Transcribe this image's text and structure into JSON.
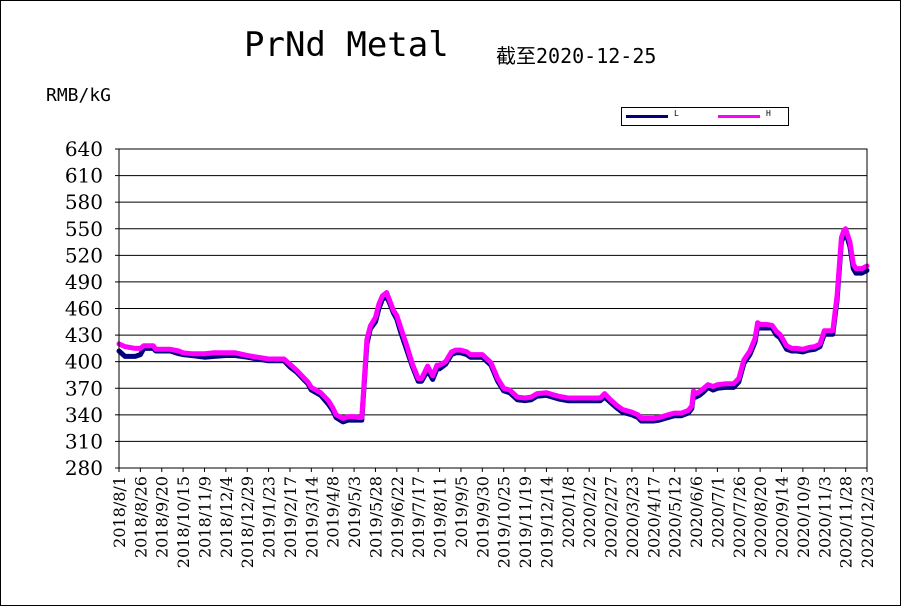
{
  "chart_data": {
    "type": "line",
    "title": "PrNd Metal",
    "subtitle": "截至2020-12-25",
    "ylabel": "RMB/kG",
    "ylim": [
      280,
      640
    ],
    "yticks": [
      280,
      310,
      340,
      370,
      400,
      430,
      460,
      490,
      520,
      550,
      580,
      610,
      640
    ],
    "grid": true,
    "legend_position": "top-right",
    "x_tick_labels": [
      "2018/8/1",
      "2018/8/26",
      "2018/9/20",
      "2018/10/15",
      "2018/11/9",
      "2018/12/4",
      "2018/12/29",
      "2019/1/23",
      "2019/2/17",
      "2019/3/14",
      "2019/4/8",
      "2019/5/3",
      "2019/5/28",
      "2019/6/22",
      "2019/7/17",
      "2019/8/11",
      "2019/9/5",
      "2019/9/30",
      "2019/10/25",
      "2019/11/19",
      "2019/12/14",
      "2020/1/8",
      "2020/2/2",
      "2020/2/27",
      "2020/3/23",
      "2020/4/17",
      "2020/5/12",
      "2020/6/6",
      "2020/7/1",
      "2020/7/26",
      "2020/8/20",
      "2020/9/14",
      "2020/10/9",
      "2020/11/3",
      "2020/11/28",
      "2020/12/23"
    ],
    "series": [
      {
        "name": "L",
        "color": "#000080",
        "points": [
          [
            "2018/8/1",
            412
          ],
          [
            "2018/8/8",
            406
          ],
          [
            "2018/8/20",
            406
          ],
          [
            "2018/8/26",
            408
          ],
          [
            "2018/8/30",
            415
          ],
          [
            "2018/9/10",
            415
          ],
          [
            "2018/9/13",
            412
          ],
          [
            "2018/9/30",
            412
          ],
          [
            "2018/10/10",
            409
          ],
          [
            "2018/10/15",
            408
          ],
          [
            "2018/10/25",
            407
          ],
          [
            "2018/11/9",
            405
          ],
          [
            "2018/11/20",
            406
          ],
          [
            "2018/12/4",
            407
          ],
          [
            "2018/12/15",
            407
          ],
          [
            "2018/12/29",
            405
          ],
          [
            "2019/1/10",
            403
          ],
          [
            "2019/1/23",
            401
          ],
          [
            "2019/2/1",
            401
          ],
          [
            "2019/2/10",
            401
          ],
          [
            "2019/2/17",
            394
          ],
          [
            "2019/2/25",
            388
          ],
          [
            "2019/3/5",
            380
          ],
          [
            "2019/3/10",
            375
          ],
          [
            "2019/3/14",
            368
          ],
          [
            "2019/3/25",
            362
          ],
          [
            "2019/4/3",
            352
          ],
          [
            "2019/4/8",
            345
          ],
          [
            "2019/4/12",
            337
          ],
          [
            "2019/4/20",
            332
          ],
          [
            "2019/4/26",
            334
          ],
          [
            "2019/5/3",
            334
          ],
          [
            "2019/5/8",
            334
          ],
          [
            "2019/5/12",
            334
          ],
          [
            "2019/5/18",
            420
          ],
          [
            "2019/5/22",
            437
          ],
          [
            "2019/5/28",
            445
          ],
          [
            "2019/6/1",
            460
          ],
          [
            "2019/6/5",
            470
          ],
          [
            "2019/6/10",
            474
          ],
          [
            "2019/6/14",
            465
          ],
          [
            "2019/6/18",
            455
          ],
          [
            "2019/6/22",
            448
          ],
          [
            "2019/6/26",
            435
          ],
          [
            "2019/7/3",
            415
          ],
          [
            "2019/7/10",
            395
          ],
          [
            "2019/7/17",
            378
          ],
          [
            "2019/7/21",
            378
          ],
          [
            "2019/7/28",
            390
          ],
          [
            "2019/8/3",
            380
          ],
          [
            "2019/8/8",
            392
          ],
          [
            "2019/8/11",
            392
          ],
          [
            "2019/8/18",
            397
          ],
          [
            "2019/8/25",
            408
          ],
          [
            "2019/8/30",
            410
          ],
          [
            "2019/9/5",
            410
          ],
          [
            "2019/9/12",
            408
          ],
          [
            "2019/9/16",
            405
          ],
          [
            "2019/9/30",
            405
          ],
          [
            "2019/10/10",
            396
          ],
          [
            "2019/10/18",
            378
          ],
          [
            "2019/10/25",
            367
          ],
          [
            "2019/11/1",
            365
          ],
          [
            "2019/11/10",
            357
          ],
          [
            "2019/11/19",
            356
          ],
          [
            "2019/11/26",
            357
          ],
          [
            "2019/12/3",
            361
          ],
          [
            "2019/12/14",
            362
          ],
          [
            "2019/12/21",
            360
          ],
          [
            "2019/12/28",
            358
          ],
          [
            "2020/1/8",
            356
          ],
          [
            "2020/1/20",
            356
          ],
          [
            "2020/2/2",
            356
          ],
          [
            "2020/2/15",
            356
          ],
          [
            "2020/2/20",
            360
          ],
          [
            "2020/2/27",
            354
          ],
          [
            "2020/3/5",
            348
          ],
          [
            "2020/3/12",
            343
          ],
          [
            "2020/3/23",
            340
          ],
          [
            "2020/3/30",
            337
          ],
          [
            "2020/4/3",
            333
          ],
          [
            "2020/4/10",
            333
          ],
          [
            "2020/4/17",
            333
          ],
          [
            "2020/4/24",
            334
          ],
          [
            "2020/5/1",
            336
          ],
          [
            "2020/5/8",
            338
          ],
          [
            "2020/5/12",
            339
          ],
          [
            "2020/5/20",
            339
          ],
          [
            "2020/5/28",
            342
          ],
          [
            "2020/6/1",
            347
          ],
          [
            "2020/6/3",
            364
          ],
          [
            "2020/6/6",
            360
          ],
          [
            "2020/6/10",
            362
          ],
          [
            "2020/6/15",
            366
          ],
          [
            "2020/6/20",
            371
          ],
          [
            "2020/6/26",
            368
          ],
          [
            "2020/7/1",
            370
          ],
          [
            "2020/7/10",
            371
          ],
          [
            "2020/7/20",
            371
          ],
          [
            "2020/7/26",
            377
          ],
          [
            "2020/8/1",
            398
          ],
          [
            "2020/8/8",
            408
          ],
          [
            "2020/8/14",
            422
          ],
          [
            "2020/8/17",
            440
          ],
          [
            "2020/8/20",
            438
          ],
          [
            "2020/8/27",
            438
          ],
          [
            "2020/9/3",
            438
          ],
          [
            "2020/9/8",
            430
          ],
          [
            "2020/9/12",
            427
          ],
          [
            "2020/9/14",
            424
          ],
          [
            "2020/9/20",
            414
          ],
          [
            "2020/9/26",
            412
          ],
          [
            "2020/10/2",
            412
          ],
          [
            "2020/10/9",
            411
          ],
          [
            "2020/10/16",
            413
          ],
          [
            "2020/10/23",
            414
          ],
          [
            "2020/10/29",
            417
          ],
          [
            "2020/11/3",
            431
          ],
          [
            "2020/11/8",
            431
          ],
          [
            "2020/11/13",
            431
          ],
          [
            "2020/11/18",
            470
          ],
          [
            "2020/11/23",
            535
          ],
          [
            "2020/11/26",
            543
          ],
          [
            "2020/11/28",
            546
          ],
          [
            "2020/12/3",
            530
          ],
          [
            "2020/12/7",
            505
          ],
          [
            "2020/12/10",
            500
          ],
          [
            "2020/12/17",
            500
          ],
          [
            "2020/12/23",
            503
          ]
        ]
      },
      {
        "name": "H",
        "color": "#ff00ff",
        "points": [
          [
            "2018/8/1",
            420
          ],
          [
            "2018/8/8",
            417
          ],
          [
            "2018/8/20",
            415
          ],
          [
            "2018/8/26",
            415
          ],
          [
            "2018/8/30",
            418
          ],
          [
            "2018/9/10",
            418
          ],
          [
            "2018/9/13",
            414
          ],
          [
            "2018/9/30",
            414
          ],
          [
            "2018/10/10",
            412
          ],
          [
            "2018/10/15",
            410
          ],
          [
            "2018/10/25",
            409
          ],
          [
            "2018/11/9",
            409
          ],
          [
            "2018/11/20",
            410
          ],
          [
            "2018/12/4",
            410
          ],
          [
            "2018/12/15",
            410
          ],
          [
            "2018/12/29",
            407
          ],
          [
            "2019/1/10",
            405
          ],
          [
            "2019/1/23",
            403
          ],
          [
            "2019/2/1",
            403
          ],
          [
            "2019/2/10",
            403
          ],
          [
            "2019/2/17",
            397
          ],
          [
            "2019/2/25",
            390
          ],
          [
            "2019/3/5",
            382
          ],
          [
            "2019/3/10",
            377
          ],
          [
            "2019/3/14",
            371
          ],
          [
            "2019/3/25",
            365
          ],
          [
            "2019/4/3",
            356
          ],
          [
            "2019/4/8",
            348
          ],
          [
            "2019/4/12",
            340
          ],
          [
            "2019/4/20",
            336
          ],
          [
            "2019/4/26",
            338
          ],
          [
            "2019/5/3",
            338
          ],
          [
            "2019/5/8",
            337
          ],
          [
            "2019/5/12",
            337
          ],
          [
            "2019/5/18",
            425
          ],
          [
            "2019/5/22",
            440
          ],
          [
            "2019/5/28",
            450
          ],
          [
            "2019/6/1",
            465
          ],
          [
            "2019/6/5",
            474
          ],
          [
            "2019/6/10",
            478
          ],
          [
            "2019/6/14",
            468
          ],
          [
            "2019/6/18",
            458
          ],
          [
            "2019/6/22",
            452
          ],
          [
            "2019/6/26",
            440
          ],
          [
            "2019/7/3",
            420
          ],
          [
            "2019/7/10",
            398
          ],
          [
            "2019/7/17",
            381
          ],
          [
            "2019/7/21",
            381
          ],
          [
            "2019/7/28",
            395
          ],
          [
            "2019/8/3",
            384
          ],
          [
            "2019/8/8",
            396
          ],
          [
            "2019/8/11",
            396
          ],
          [
            "2019/8/18",
            400
          ],
          [
            "2019/8/25",
            411
          ],
          [
            "2019/8/30",
            413
          ],
          [
            "2019/9/5",
            413
          ],
          [
            "2019/9/12",
            411
          ],
          [
            "2019/9/16",
            408
          ],
          [
            "2019/9/30",
            408
          ],
          [
            "2019/10/10",
            399
          ],
          [
            "2019/10/18",
            381
          ],
          [
            "2019/10/25",
            370
          ],
          [
            "2019/11/1",
            368
          ],
          [
            "2019/11/10",
            360
          ],
          [
            "2019/11/19",
            359
          ],
          [
            "2019/11/26",
            360
          ],
          [
            "2019/12/3",
            364
          ],
          [
            "2019/12/14",
            365
          ],
          [
            "2019/12/21",
            363
          ],
          [
            "2019/12/28",
            361
          ],
          [
            "2020/1/8",
            359
          ],
          [
            "2020/1/20",
            359
          ],
          [
            "2020/2/2",
            359
          ],
          [
            "2020/2/15",
            359
          ],
          [
            "2020/2/20",
            364
          ],
          [
            "2020/2/27",
            357
          ],
          [
            "2020/3/5",
            351
          ],
          [
            "2020/3/12",
            346
          ],
          [
            "2020/3/23",
            343
          ],
          [
            "2020/3/30",
            340
          ],
          [
            "2020/4/3",
            336
          ],
          [
            "2020/4/10",
            336
          ],
          [
            "2020/4/17",
            336
          ],
          [
            "2020/4/24",
            337
          ],
          [
            "2020/5/1",
            339
          ],
          [
            "2020/5/8",
            341
          ],
          [
            "2020/5/12",
            342
          ],
          [
            "2020/5/20",
            342
          ],
          [
            "2020/5/28",
            345
          ],
          [
            "2020/6/1",
            350
          ],
          [
            "2020/6/3",
            367
          ],
          [
            "2020/6/6",
            364
          ],
          [
            "2020/6/10",
            366
          ],
          [
            "2020/6/15",
            370
          ],
          [
            "2020/6/20",
            374
          ],
          [
            "2020/6/26",
            372
          ],
          [
            "2020/7/1",
            374
          ],
          [
            "2020/7/10",
            375
          ],
          [
            "2020/7/20",
            375
          ],
          [
            "2020/7/26",
            381
          ],
          [
            "2020/8/1",
            402
          ],
          [
            "2020/8/8",
            412
          ],
          [
            "2020/8/14",
            426
          ],
          [
            "2020/8/17",
            444
          ],
          [
            "2020/8/20",
            442
          ],
          [
            "2020/8/27",
            442
          ],
          [
            "2020/9/3",
            441
          ],
          [
            "2020/9/8",
            434
          ],
          [
            "2020/9/12",
            431
          ],
          [
            "2020/9/14",
            428
          ],
          [
            "2020/9/20",
            418
          ],
          [
            "2020/9/26",
            415
          ],
          [
            "2020/10/2",
            415
          ],
          [
            "2020/10/9",
            414
          ],
          [
            "2020/10/16",
            416
          ],
          [
            "2020/10/23",
            417
          ],
          [
            "2020/10/29",
            420
          ],
          [
            "2020/11/3",
            435
          ],
          [
            "2020/11/8",
            435
          ],
          [
            "2020/11/13",
            435
          ],
          [
            "2020/11/18",
            475
          ],
          [
            "2020/11/23",
            540
          ],
          [
            "2020/11/26",
            548
          ],
          [
            "2020/11/28",
            550
          ],
          [
            "2020/12/3",
            535
          ],
          [
            "2020/12/7",
            510
          ],
          [
            "2020/12/10",
            505
          ],
          [
            "2020/12/17",
            505
          ],
          [
            "2020/12/23",
            508
          ]
        ]
      }
    ]
  }
}
